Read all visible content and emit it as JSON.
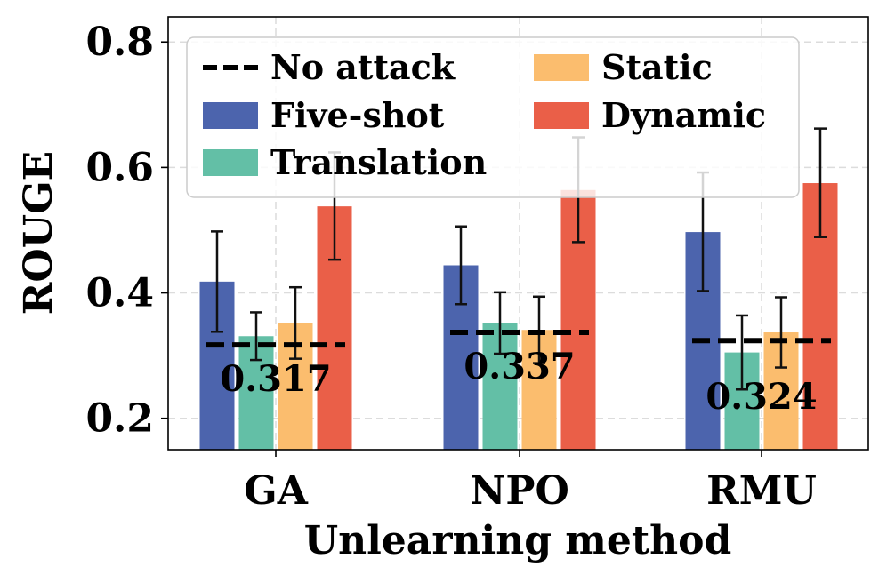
{
  "chart_data": {
    "type": "bar",
    "xlabel": "Unlearning method",
    "ylabel": "ROUGE",
    "ylim": [
      0.15,
      0.84
    ],
    "yticks": [
      0.2,
      0.4,
      0.6,
      0.8
    ],
    "ytick_labels": [
      "0.2",
      "0.4",
      "0.6",
      "0.8"
    ],
    "grid": true,
    "legend_position": "top",
    "categories": [
      "GA",
      "NPO",
      "RMU"
    ],
    "series": [
      {
        "name": "Five-shot",
        "color": "#4c64ad",
        "values": [
          0.418,
          0.444,
          0.497
        ],
        "err_low": [
          0.338,
          0.382,
          0.403
        ],
        "err_high": [
          0.498,
          0.506,
          0.592
        ]
      },
      {
        "name": "Translation",
        "color": "#63bfa6",
        "values": [
          0.331,
          0.352,
          0.305
        ],
        "err_low": [
          0.293,
          0.303,
          0.246
        ],
        "err_high": [
          0.369,
          0.401,
          0.364
        ]
      },
      {
        "name": "Static",
        "color": "#fbbd6e",
        "values": [
          0.352,
          0.341,
          0.337
        ],
        "err_low": [
          0.295,
          0.288,
          0.281
        ],
        "err_high": [
          0.409,
          0.394,
          0.393
        ]
      },
      {
        "name": "Dynamic",
        "color": "#ea5f48",
        "values": [
          0.538,
          0.564,
          0.575
        ],
        "err_low": [
          0.453,
          0.481,
          0.489
        ],
        "err_high": [
          0.624,
          0.648,
          0.662
        ]
      }
    ],
    "no_attack": {
      "name": "No attack",
      "values": [
        0.317,
        0.337,
        0.324
      ],
      "labels": [
        "0.317",
        "0.337",
        "0.324"
      ]
    },
    "legend": {
      "items": [
        "No attack",
        "Five-shot",
        "Translation",
        "Static",
        "Dynamic"
      ]
    }
  }
}
